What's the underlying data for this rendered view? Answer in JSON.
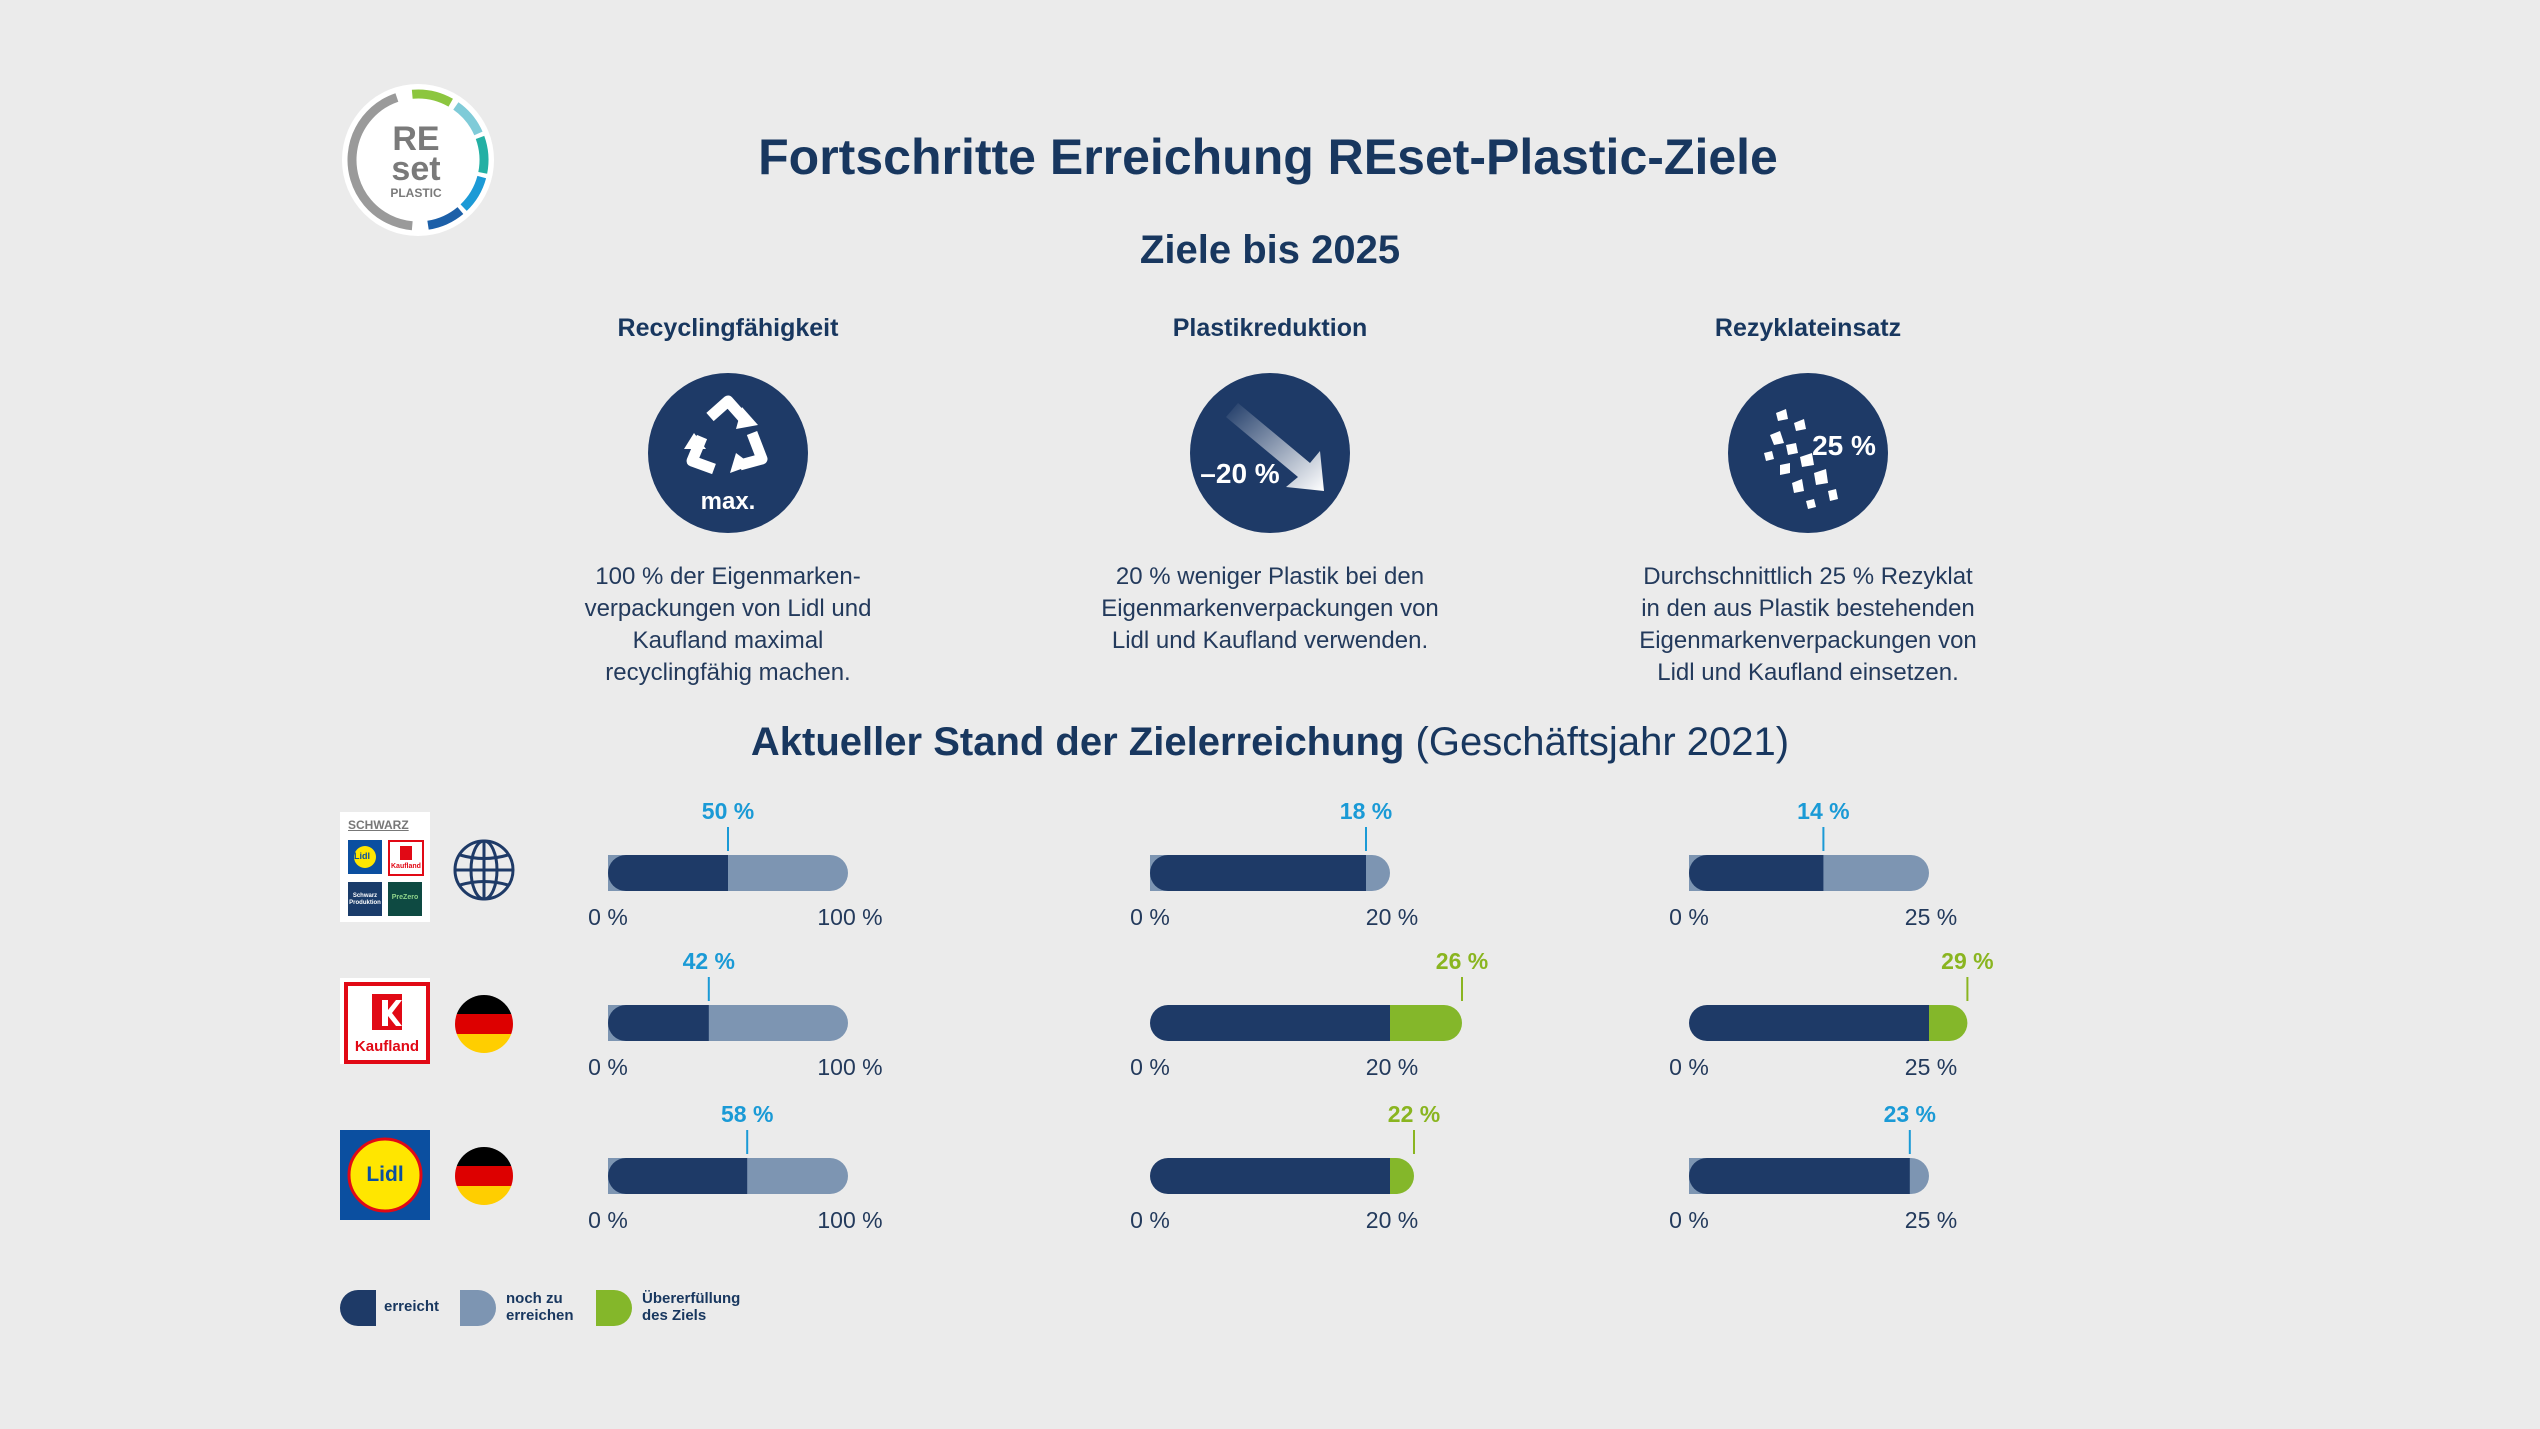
{
  "title": "Fortschritte Erreichung REset-Plastic-Ziele",
  "logo": {
    "line1": "RE",
    "line2": "set",
    "line3": "PLASTIC"
  },
  "goals_title": "Ziele bis 2025",
  "goals": [
    {
      "heading": "Recyclingfähigkeit",
      "icon": "recycle-icon",
      "icon_label": "max.",
      "text": [
        "100 % der Eigenmarken-",
        "verpackungen von Lidl und",
        "Kaufland maximal",
        "recyclingfähig machen."
      ]
    },
    {
      "heading": "Plastikreduktion",
      "icon": "arrow-down-icon",
      "icon_label": "–20 %",
      "text": [
        "20 % weniger Plastik bei den",
        "Eigenmarkenverpackungen von",
        "Lidl und Kaufland verwenden."
      ]
    },
    {
      "heading": "Rezyklateinsatz",
      "icon": "flakes-icon",
      "icon_label": "25 %",
      "text": [
        "Durchschnittlich 25 % Rezyklat",
        "in den aus Plastik bestehenden",
        "Eigenmarkenverpackungen von",
        "Lidl und Kaufland einsetzen."
      ]
    }
  ],
  "status_title": {
    "bold": "Aktueller Stand der Zielerreichung",
    "normal": " (Geschäftsjahr 2021)"
  },
  "rows": [
    {
      "logo": "SCHWARZ",
      "logo_sub": [
        "Lidl",
        "Kaufland",
        "Schwarz Produktion",
        "PreZero"
      ],
      "region_icon": "globe-icon"
    },
    {
      "logo": "Kaufland",
      "region_icon": "germany-flag-icon"
    },
    {
      "logo": "Lidl",
      "region_icon": "germany-flag-icon"
    }
  ],
  "colors": {
    "achieved": "#1e3a67",
    "remaining": "#7d95b2",
    "exceeded": "#84b72a",
    "label_blue": "#1a9ad6",
    "label_green": "#8ab520"
  },
  "chart_data": [
    {
      "type": "bar",
      "metric": "Recyclingfähigkeit",
      "min_label": "0 %",
      "target_label": "100 %",
      "target": 100,
      "series": [
        {
          "name": "Schwarz Gruppe",
          "value": 50,
          "label": "50 %"
        },
        {
          "name": "Kaufland",
          "value": 42,
          "label": "42 %"
        },
        {
          "name": "Lidl",
          "value": 58,
          "label": "58 %"
        }
      ]
    },
    {
      "type": "bar",
      "metric": "Plastikreduktion",
      "min_label": "0 %",
      "target_label": "20 %",
      "target": 20,
      "series": [
        {
          "name": "Schwarz Gruppe",
          "value": 18,
          "label": "18 %"
        },
        {
          "name": "Kaufland",
          "value": 26,
          "label": "26 %"
        },
        {
          "name": "Lidl",
          "value": 22,
          "label": "22 %"
        }
      ]
    },
    {
      "type": "bar",
      "metric": "Rezyklateinsatz",
      "min_label": "0 %",
      "target_label": "25 %",
      "target": 25,
      "series": [
        {
          "name": "Schwarz Gruppe",
          "value": 14,
          "label": "14 %"
        },
        {
          "name": "Kaufland",
          "value": 29,
          "label": "29 %"
        },
        {
          "name": "Lidl",
          "value": 23,
          "label": "23 %"
        }
      ]
    }
  ],
  "legend": [
    {
      "key": "achieved",
      "label": [
        "erreicht"
      ]
    },
    {
      "key": "remaining",
      "label": [
        "noch zu",
        "erreichen"
      ]
    },
    {
      "key": "exceeded",
      "label": [
        "Übererfüllung",
        "des Ziels"
      ]
    }
  ]
}
